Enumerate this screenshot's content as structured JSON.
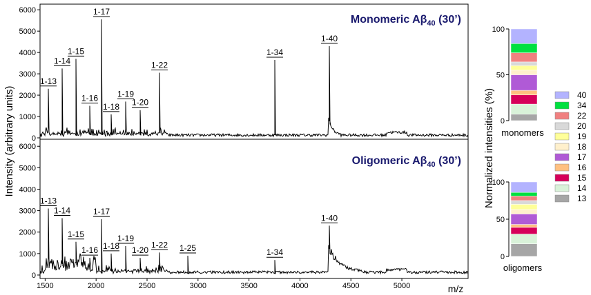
{
  "chart_data": [
    {
      "type": "line",
      "panel": "monomeric",
      "title": "Monomeric Aβ40 (30’)",
      "title_parts": {
        "main": "Monomeric Aβ",
        "sub": "40",
        "tail": " (30’)"
      },
      "ylabel": "Intensity  (arbitrary units)",
      "xlabel": "m/z",
      "xlim": [
        1450,
        5650
      ],
      "ylim": [
        0,
        6200
      ],
      "x_ticks": [
        1500,
        2000,
        2500,
        3000,
        3500,
        4000,
        4500,
        5000
      ],
      "y_ticks": [
        0,
        1000,
        2000,
        3000,
        4000,
        5000,
        6000
      ],
      "peaks": [
        {
          "label": "1-13",
          "x": 1530,
          "y": 2300
        },
        {
          "label": "1-14",
          "x": 1665,
          "y": 3250
        },
        {
          "label": "1-15",
          "x": 1800,
          "y": 3700
        },
        {
          "label": "1-16",
          "x": 1935,
          "y": 1500
        },
        {
          "label": "1-17",
          "x": 2055,
          "y": 5550
        },
        {
          "label": "1-18",
          "x": 2145,
          "y": 1100
        },
        {
          "label": "1-19",
          "x": 2290,
          "y": 1700
        },
        {
          "label": "1-20",
          "x": 2430,
          "y": 1300
        },
        {
          "label": "1-22",
          "x": 2620,
          "y": 3050
        },
        {
          "label": "1-34",
          "x": 3750,
          "y": 3650
        },
        {
          "label": "1-40",
          "x": 4285,
          "y": 4300
        }
      ]
    },
    {
      "type": "line",
      "panel": "oligomeric",
      "title": "Oligomeric Aβ40 (30’)",
      "title_parts": {
        "main": "Oligomeric Aβ",
        "sub": "40",
        "tail": " (30’)"
      },
      "xlabel": "m/z",
      "xlim": [
        1450,
        5650
      ],
      "ylim": [
        0,
        6200
      ],
      "x_ticks": [
        1500,
        2000,
        2500,
        3000,
        3500,
        4000,
        4500,
        5000
      ],
      "y_ticks": [
        0,
        1000,
        2000,
        3000,
        4000,
        5000,
        6000
      ],
      "peaks": [
        {
          "label": "1-13",
          "x": 1530,
          "y": 3100
        },
        {
          "label": "1-14",
          "x": 1665,
          "y": 2650
        },
        {
          "label": "1-15",
          "x": 1800,
          "y": 1550
        },
        {
          "label": "1-16",
          "x": 1935,
          "y": 800
        },
        {
          "label": "1-17",
          "x": 2055,
          "y": 2600
        },
        {
          "label": "1-18",
          "x": 2145,
          "y": 1000
        },
        {
          "label": "1-19",
          "x": 2290,
          "y": 1350
        },
        {
          "label": "1-20",
          "x": 2430,
          "y": 800
        },
        {
          "label": "1-22",
          "x": 2620,
          "y": 1050
        },
        {
          "label": "1-25",
          "x": 2900,
          "y": 900
        },
        {
          "label": "1-34",
          "x": 3750,
          "y": 700
        },
        {
          "label": "1-40",
          "x": 4285,
          "y": 2300
        }
      ]
    },
    {
      "type": "bar",
      "stacked": true,
      "ylabel": "Normalized intensities (%)",
      "ylim": [
        0,
        100
      ],
      "y_ticks": [
        0,
        50,
        100
      ],
      "categories": [
        "monomers",
        "oligomers"
      ],
      "legend_position": "right",
      "series": [
        {
          "name": "13",
          "color": "#a6a6a6",
          "values": [
            7,
            17
          ]
        },
        {
          "name": "14",
          "color": "#d9f2d9",
          "values": [
            11,
            13
          ]
        },
        {
          "name": "15",
          "color": "#d6005a",
          "values": [
            10,
            9
          ]
        },
        {
          "name": "16",
          "color": "#ffc080",
          "values": [
            5,
            4
          ]
        },
        {
          "name": "17",
          "color": "#b05ad6",
          "values": [
            17,
            14
          ]
        },
        {
          "name": "18",
          "color": "#fff0cc",
          "values": [
            5,
            6
          ]
        },
        {
          "name": "19",
          "color": "#ffff99",
          "values": [
            5,
            7
          ]
        },
        {
          "name": "20",
          "color": "#d9d9d9",
          "values": [
            4,
            5
          ]
        },
        {
          "name": "22",
          "color": "#f08080",
          "values": [
            10,
            6
          ]
        },
        {
          "name": "34",
          "color": "#00e040",
          "values": [
            10,
            5
          ]
        },
        {
          "name": "40",
          "color": "#b3b3ff",
          "values": [
            16,
            14
          ]
        }
      ]
    }
  ]
}
